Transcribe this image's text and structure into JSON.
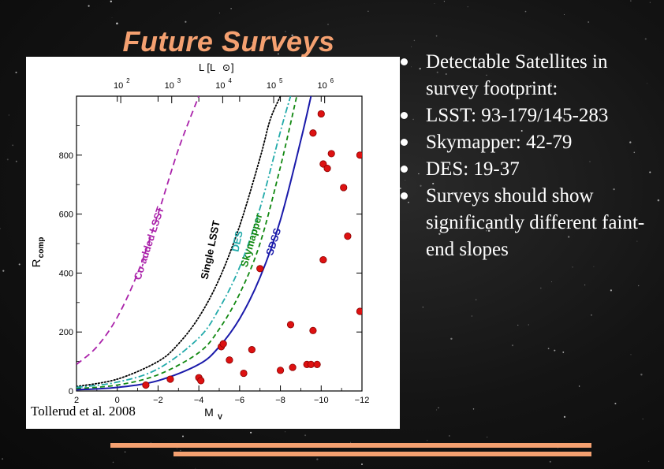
{
  "slide": {
    "title": "Future Surveys",
    "citation": "Tollerud et al. 2008",
    "bullets": [
      "Detectable Satellites in survey footprint:",
      "LSST: 93-179/145-283",
      "Skymapper: 42-79",
      "DES: 19-37",
      "Surveys should show significantly different faint-end slopes"
    ]
  },
  "colors": {
    "title": "#f4a070",
    "co_added_lsst": "#aa22aa",
    "single_lsst": "#000000",
    "des": "#22aaaa",
    "skymapper": "#118811",
    "sdss": "#1a1aaa",
    "points": "#dd1111",
    "bar": "#f4a070"
  },
  "chart_data": {
    "type": "scatter",
    "xlabel": "M",
    "xlabel_sub": "V",
    "ylabel": "R",
    "ylabel_sub": "comp",
    "top_axis_label": "L [L",
    "top_axis_label_suffix": "]",
    "xlim": [
      2,
      -12
    ],
    "ylim": [
      0,
      1000
    ],
    "x_ticks": [
      2,
      0,
      -2,
      -4,
      -6,
      -8,
      -10,
      -12
    ],
    "x_tick_labels": [
      "2",
      "0",
      "−2",
      "−4",
      "−6",
      "−8",
      "−10",
      "−12"
    ],
    "y_ticks": [
      0,
      200,
      400,
      600,
      800
    ],
    "y_tick_labels": [
      "0",
      "200",
      "400",
      "600",
      "800"
    ],
    "top_ticks_log": [
      2,
      3,
      4,
      5,
      6
    ],
    "top_tick_base": "10",
    "top_tick_exponents": [
      "2",
      "3",
      "4",
      "5",
      "6"
    ],
    "curves": [
      {
        "key": "co_added_lsst",
        "label": "Co-added LSST",
        "dash": "8,5",
        "x": [
          2,
          1,
          0,
          -1,
          -2,
          -3,
          -4
        ],
        "y": [
          90,
          150,
          250,
          400,
          600,
          820,
          1000
        ]
      },
      {
        "key": "single_lsst",
        "label": "Single LSST",
        "dash": "1.5,2.5",
        "x": [
          2,
          0,
          -2,
          -3,
          -4,
          -5,
          -6,
          -7,
          -7.5,
          -8
        ],
        "y": [
          15,
          40,
          100,
          160,
          250,
          380,
          560,
          790,
          920,
          1000
        ]
      },
      {
        "key": "des",
        "label": "DES",
        "dash": "8,3,2,3",
        "x": [
          2,
          0,
          -2,
          -4,
          -5,
          -6,
          -7,
          -8,
          -8.5
        ],
        "y": [
          12,
          30,
          75,
          180,
          280,
          420,
          620,
          880,
          1000
        ]
      },
      {
        "key": "skymapper",
        "label": "Skymapper",
        "dash": "6,4",
        "x": [
          2,
          0,
          -2,
          -4,
          -5,
          -6,
          -7,
          -8,
          -8.8
        ],
        "y": [
          8,
          20,
          55,
          130,
          210,
          330,
          500,
          760,
          1000
        ]
      },
      {
        "key": "sdss",
        "label": "SDSS",
        "dash": "",
        "x": [
          2,
          0,
          -2,
          -4,
          -5,
          -6,
          -7,
          -8,
          -9,
          -9.5
        ],
        "y": [
          4,
          12,
          35,
          90,
          150,
          245,
          385,
          580,
          850,
          1000
        ]
      }
    ],
    "points": {
      "x": [
        -1.4,
        -2.6,
        -4.0,
        -4.1,
        -5.1,
        -5.2,
        -5.5,
        -6.2,
        -6.6,
        -7.0,
        -8.0,
        -8.5,
        -8.6,
        -9.3,
        -9.5,
        -9.6,
        -9.6,
        -9.8,
        -10.0,
        -10.1,
        -10.1,
        -10.3,
        -10.5,
        -11.1,
        -11.3,
        -11.9,
        -11.9
      ],
      "y": [
        20,
        40,
        45,
        35,
        150,
        160,
        105,
        60,
        140,
        415,
        70,
        225,
        80,
        90,
        90,
        205,
        875,
        90,
        940,
        445,
        770,
        755,
        805,
        690,
        525,
        270,
        800
      ]
    }
  }
}
